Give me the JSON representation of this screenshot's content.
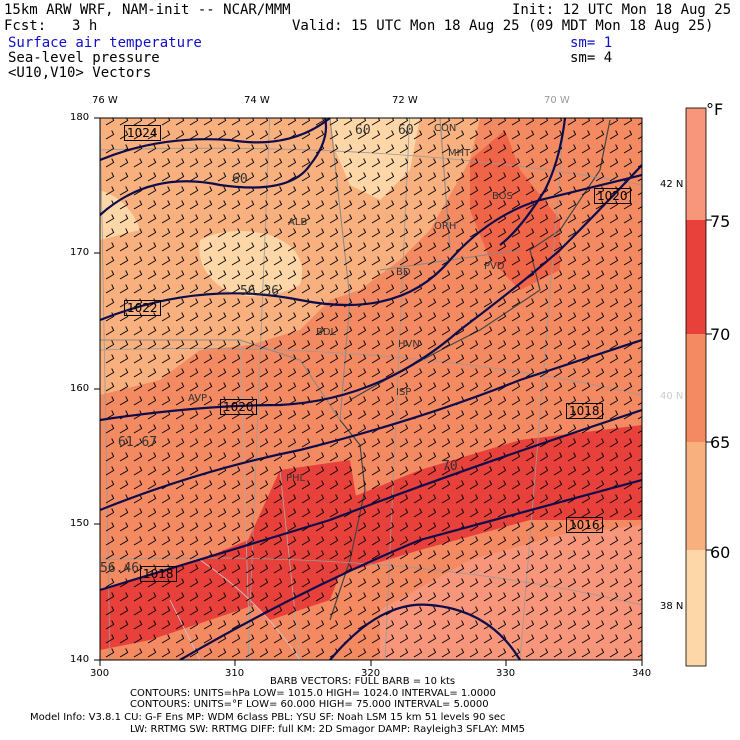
{
  "header": {
    "model_title": "15km ARW WRF, NAM-init -- NCAR/MMM",
    "init": "Init: 12 UTC Mon 18 Aug 25",
    "fcst_label": "Fcst:",
    "fcst_value": "3 h",
    "valid": "Valid: 15 UTC Mon 18 Aug 25 (09 MDT Mon 18 Aug 25)",
    "field1": "Surface air temperature",
    "field1_sm": "sm= 1",
    "field2": "Sea-level pressure",
    "field2_sm": "sm= 4",
    "field3": "<U10,V10> Vectors"
  },
  "axes": {
    "bottom_ticks": [
      "300",
      "310",
      "320",
      "330",
      "340"
    ],
    "left_ticks": [
      "140",
      "150",
      "160",
      "170",
      "180"
    ],
    "top_lon_labels": [
      "76 W",
      "74 W",
      "72 W",
      "70 W"
    ],
    "right_lat_labels": [
      "42 N",
      "40 N",
      "38 N"
    ]
  },
  "colorbar": {
    "unit": "°F",
    "labels": [
      "75",
      "70",
      "65",
      "60"
    ],
    "colors": [
      "#fed7a8",
      "#f7b07e",
      "#f48a62",
      "#f06448",
      "#e8403a",
      "#f06448",
      "#f7967a"
    ]
  },
  "isobar_labels": [
    "1024",
    "1022",
    "1020",
    "1018",
    "1016",
    "1018",
    "1020"
  ],
  "temp_labels": [
    "60",
    "60",
    "56.36",
    "61.67",
    "56.46",
    "70",
    "60"
  ],
  "place_labels": [
    "CON",
    "MHT",
    "BOS",
    "ALB",
    "ORH",
    "BD",
    "PVD",
    "BDL",
    "HVN",
    "AVP",
    "ISP",
    "PHL"
  ],
  "footer": {
    "barb_line": "BARB VECTORS:  FULL BARB = 10 kts",
    "contours1": "CONTOURS:  UNITS=hPa  LOW=   1015.0      HIGH=  1024.0      INTERVAL=   1.0000",
    "contours2": "CONTOURS:  UNITS=°F  LOW=  60.000      HIGH=  75.000      INTERVAL=   5.0000",
    "model_info1": "Model Info: V3.8.1     CU: G-F Ens  MP: WDM 6class  PBL: YSU      SF: Noah LSM     15 km    51 levels   90 sec",
    "model_info2": "LW: RRTMG   SW: RRTMG  DIFF: full    KM: 2D Smagor DAMP: Rayleigh3  SFLAY: MM5"
  }
}
